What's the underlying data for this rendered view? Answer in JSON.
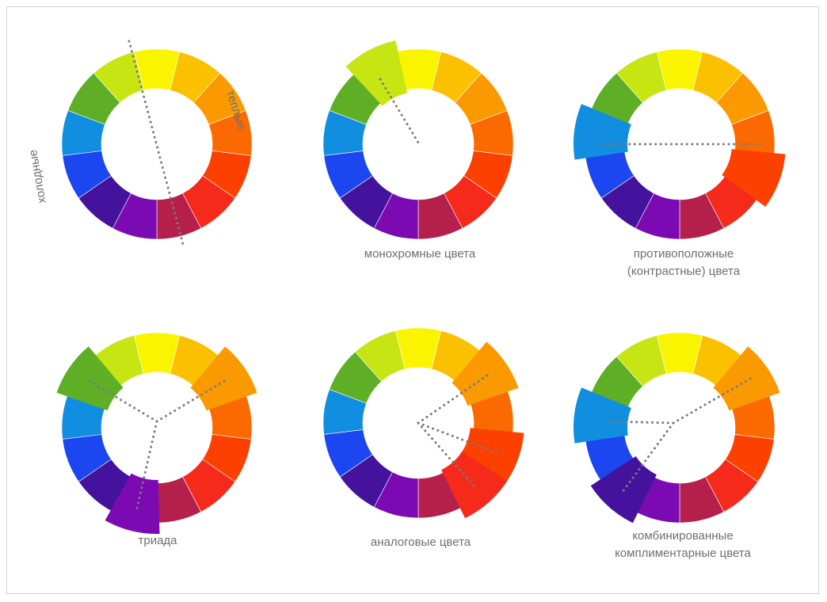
{
  "wheels": [
    {
      "id": "temperature",
      "caption": [],
      "side_labels": {
        "warm": "теплые",
        "cold": "холодные"
      }
    },
    {
      "id": "monochrome",
      "caption": [
        "монохромные цвета"
      ]
    },
    {
      "id": "complementary",
      "caption": [
        "противоположные",
        "(контрастные) цвета"
      ]
    },
    {
      "id": "triad",
      "caption": [
        "триада"
      ]
    },
    {
      "id": "analogous",
      "caption": [
        "аналоговые цвета"
      ]
    },
    {
      "id": "split-complementary",
      "caption": [
        "комбинированные",
        "комплиментарные цвета"
      ]
    }
  ],
  "segment_colors": [
    "#fbf400",
    "#fbc000",
    "#fb9a00",
    "#fb6a00",
    "#fb4000",
    "#f52a1a",
    "#b41f4b",
    "#7b0ab3",
    "#44129c",
    "#1c46f0",
    "#128ee0",
    "#5faf26",
    "#c7e512"
  ],
  "highlighted": {
    "monochrome": [
      12
    ],
    "complementary": [
      4,
      10
    ],
    "triad": [
      2,
      7,
      11
    ],
    "analogous": [
      2,
      4,
      5
    ],
    "split-complementary": [
      2,
      8,
      10
    ]
  },
  "dotted_color": "#7a7a7a"
}
